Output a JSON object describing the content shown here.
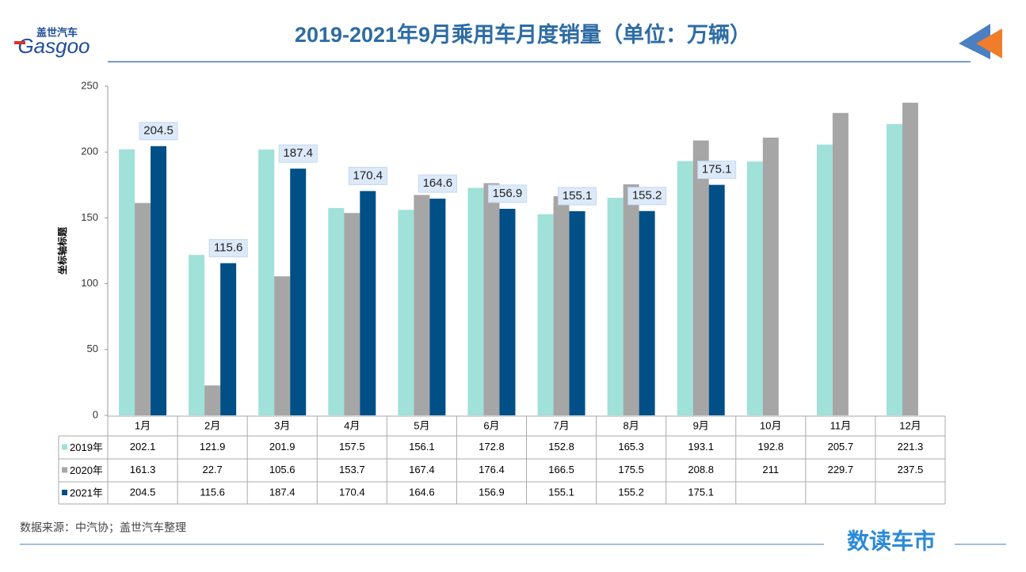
{
  "logo": {
    "cn": "盖世汽车",
    "en": "Gasgoo"
  },
  "footer": {
    "source": "数据来源：中汽协；盖世汽车整理",
    "brand": "数读车市"
  },
  "chart_data": {
    "type": "bar",
    "title": "2019-2021年9月乘用车月度销量（单位：万辆）",
    "y_label": "坐标轴标题",
    "categories": [
      "1月",
      "2月",
      "3月",
      "4月",
      "5月",
      "6月",
      "7月",
      "8月",
      "9月",
      "10月",
      "11月",
      "12月"
    ],
    "series": [
      {
        "name": "2019年",
        "color": "#a0e1d9",
        "values": [
          202.1,
          121.9,
          201.9,
          157.5,
          156.1,
          172.8,
          152.8,
          165.3,
          193.1,
          192.8,
          205.7,
          221.3
        ]
      },
      {
        "name": "2020年",
        "color": "#a6a6a6",
        "values": [
          161.3,
          22.7,
          105.6,
          153.7,
          167.4,
          176.4,
          166.5,
          175.5,
          208.8,
          211,
          229.7,
          237.5
        ]
      },
      {
        "name": "2021年",
        "color": "#004f87",
        "values": [
          204.5,
          115.6,
          187.4,
          170.4,
          164.6,
          156.9,
          155.1,
          155.2,
          175.1,
          null,
          null,
          null
        ],
        "data_labels": true
      }
    ],
    "ylim": [
      0,
      250
    ],
    "yticks": [
      0,
      50,
      100,
      150,
      200,
      250
    ]
  }
}
